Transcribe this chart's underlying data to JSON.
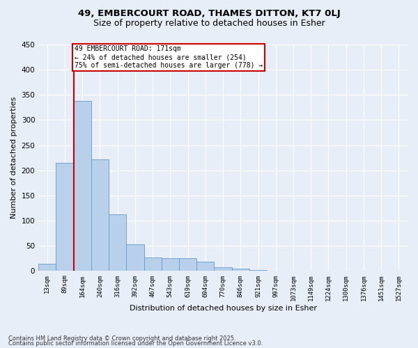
{
  "title1": "49, EMBERCOURT ROAD, THAMES DITTON, KT7 0LJ",
  "title2": "Size of property relative to detached houses in Esher",
  "xlabel": "Distribution of detached houses by size in Esher",
  "ylabel": "Number of detached properties",
  "categories": [
    "13sqm",
    "89sqm",
    "164sqm",
    "240sqm",
    "316sqm",
    "392sqm",
    "467sqm",
    "543sqm",
    "619sqm",
    "694sqm",
    "770sqm",
    "846sqm",
    "921sqm",
    "997sqm",
    "1073sqm",
    "1149sqm",
    "1224sqm",
    "1300sqm",
    "1376sqm",
    "1451sqm",
    "1527sqm"
  ],
  "values": [
    15,
    215,
    338,
    222,
    113,
    53,
    27,
    26,
    25,
    18,
    8,
    5,
    2,
    1,
    0,
    0,
    0,
    0,
    0,
    0,
    0
  ],
  "bar_color": "#b8d0ea",
  "bar_edge_color": "#6699cc",
  "red_line_x": 1.5,
  "annotation_text": "49 EMBERCOURT ROAD: 171sqm\n← 24% of detached houses are smaller (254)\n75% of semi-detached houses are larger (778) →",
  "annotation_box_color": "#ffffff",
  "annotation_box_edge": "#cc0000",
  "background_color": "#e8eef8",
  "grid_color": "#ffffff",
  "ylim": [
    0,
    450
  ],
  "yticks": [
    0,
    50,
    100,
    150,
    200,
    250,
    300,
    350,
    400,
    450
  ],
  "footer1": "Contains HM Land Registry data © Crown copyright and database right 2025.",
  "footer2": "Contains public sector information licensed under the Open Government Licence v3.0."
}
